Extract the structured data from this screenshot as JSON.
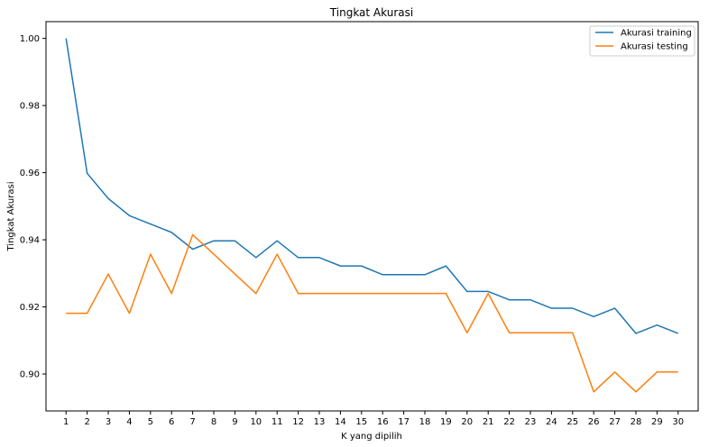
{
  "chart_data": {
    "type": "line",
    "title": "Tingkat Akurasi",
    "xlabel": "K yang dipilih",
    "ylabel": "Tingkat Akurasi",
    "x": [
      1,
      2,
      3,
      4,
      5,
      6,
      7,
      8,
      9,
      10,
      11,
      12,
      13,
      14,
      15,
      16,
      17,
      18,
      19,
      20,
      21,
      22,
      23,
      24,
      25,
      26,
      27,
      28,
      29,
      30
    ],
    "xticks": [
      "1",
      "2",
      "3",
      "4",
      "5",
      "6",
      "7",
      "8",
      "9",
      "10",
      "11",
      "12",
      "13",
      "14",
      "15",
      "16",
      "17",
      "18",
      "19",
      "20",
      "21",
      "22",
      "23",
      "24",
      "25",
      "26",
      "27",
      "28",
      "29",
      "30"
    ],
    "yticks": [
      "0.90",
      "0.92",
      "0.94",
      "0.96",
      "0.98",
      "1.00"
    ],
    "ylim": [
      0.889,
      1.005
    ],
    "xlim": [
      0.05,
      30.95
    ],
    "grid": false,
    "legend_position": "top-right",
    "series": [
      {
        "name": "Akurasi training",
        "color": "#1f77b4",
        "values": [
          1.0,
          0.9598,
          0.9523,
          0.9472,
          0.9447,
          0.9422,
          0.9372,
          0.9397,
          0.9397,
          0.9347,
          0.9397,
          0.9347,
          0.9347,
          0.9322,
          0.9322,
          0.9296,
          0.9296,
          0.9296,
          0.9322,
          0.9246,
          0.9246,
          0.9221,
          0.9221,
          0.9196,
          0.9196,
          0.9171,
          0.9196,
          0.9121,
          0.9146,
          0.9121
        ]
      },
      {
        "name": "Akurasi testing",
        "color": "#ff7f0e",
        "values": [
          0.9181,
          0.9181,
          0.9298,
          0.9181,
          0.9357,
          0.924,
          0.9415,
          0.9357,
          0.9298,
          0.924,
          0.9357,
          0.924,
          0.924,
          0.924,
          0.924,
          0.924,
          0.924,
          0.924,
          0.924,
          0.9123,
          0.924,
          0.9123,
          0.9123,
          0.9123,
          0.9123,
          0.8947,
          0.9006,
          0.8947,
          0.9006,
          0.9006
        ]
      }
    ]
  }
}
